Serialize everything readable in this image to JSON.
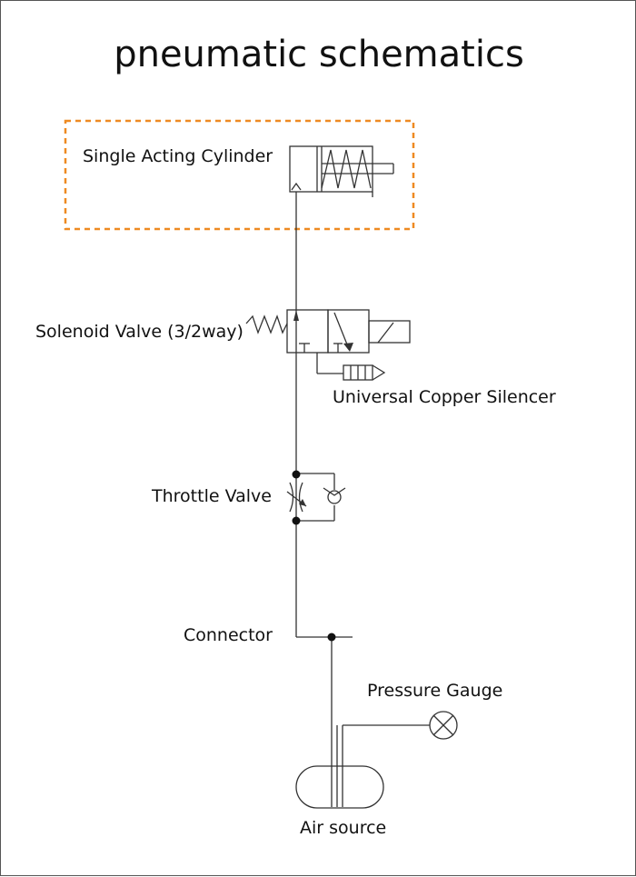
{
  "title": "pneumatic schematics",
  "components": {
    "cylinder": "Single Acting Cylinder",
    "solenoid_valve": "Solenoid Valve (3/2way)",
    "silencer": "Universal Copper Silencer",
    "throttle_valve": "Throttle Valve",
    "connector": "Connector",
    "pressure_gauge": "Pressure Gauge",
    "air_source": "Air source"
  },
  "colors": {
    "line": "#333333",
    "highlight_box": "#ee8a22"
  }
}
